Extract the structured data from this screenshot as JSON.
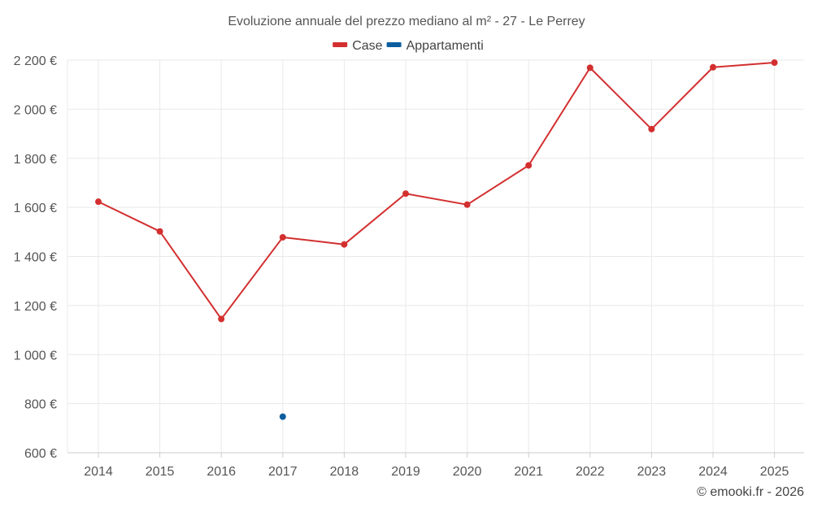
{
  "chart_data": {
    "type": "line",
    "title": "Evoluzione annuale del prezzo mediano al m² - 27 - Le Perrey",
    "categories": [
      "2014",
      "2015",
      "2016",
      "2017",
      "2018",
      "2019",
      "2020",
      "2021",
      "2022",
      "2023",
      "2024",
      "2025"
    ],
    "series": [
      {
        "name": "Case",
        "color": "#d32f2f",
        "values": [
          1623,
          1502,
          1145,
          1478,
          1449,
          1656,
          1611,
          1771,
          2169,
          1919,
          2171,
          2190
        ]
      },
      {
        "name": "Appartamenti",
        "color": "#0d5e9e",
        "values": [
          null,
          null,
          null,
          747,
          null,
          null,
          null,
          null,
          null,
          null,
          null,
          null
        ]
      }
    ],
    "y_ticks": [
      600,
      800,
      1000,
      1200,
      1400,
      1600,
      1800,
      2000,
      2200
    ],
    "y_tick_labels": [
      "600 €",
      "800 €",
      "1 000 €",
      "1 200 €",
      "1 400 €",
      "1 600 €",
      "1 800 €",
      "2 000 €",
      "2 200 €"
    ],
    "ylim": [
      600,
      2200
    ],
    "xlabel": "",
    "ylabel": "",
    "grid": true,
    "legend_position": "top-center"
  },
  "credit": "© emooki.fr - 2026"
}
